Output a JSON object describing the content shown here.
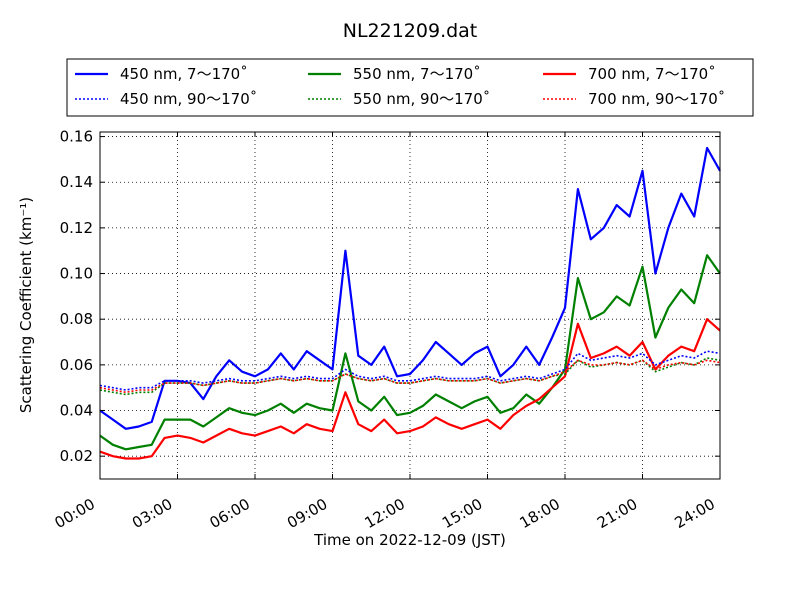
{
  "chart_data": {
    "type": "line",
    "title": "NL221209.dat",
    "xlabel": "Time on 2022-12-09 (JST)",
    "ylabel": "Scattering Coefficient (km⁻¹)",
    "xlim": [
      0,
      24
    ],
    "ylim": [
      0.01,
      0.162
    ],
    "x_ticks": [
      0,
      3,
      6,
      9,
      12,
      15,
      18,
      21,
      24
    ],
    "x_tick_labels": [
      "00:00",
      "03:00",
      "06:00",
      "09:00",
      "12:00",
      "15:00",
      "18:00",
      "21:00",
      "24:00"
    ],
    "y_ticks": [
      0.02,
      0.04,
      0.06,
      0.08,
      0.1,
      0.12,
      0.14,
      0.16
    ],
    "y_tick_labels": [
      "0.02",
      "0.04",
      "0.06",
      "0.08",
      "0.10",
      "0.12",
      "0.14",
      "0.16"
    ],
    "grid": true,
    "legend_position": "top, above plot, 3 columns",
    "x": [
      0,
      0.5,
      1,
      1.5,
      2,
      2.5,
      3,
      3.5,
      4,
      4.5,
      5,
      5.5,
      6,
      6.5,
      7,
      7.5,
      8,
      8.5,
      9,
      9.5,
      10,
      10.5,
      11,
      11.5,
      12,
      12.5,
      13,
      13.5,
      14,
      14.5,
      15,
      15.5,
      16,
      16.5,
      17,
      17.5,
      18,
      18.5,
      19,
      19.5,
      20,
      20.5,
      21,
      21.5,
      22,
      22.5,
      23,
      23.5,
      24
    ],
    "series": [
      {
        "name": "450 nm, 7～170˚",
        "color": "#0000ff",
        "style": "solid",
        "values": [
          0.04,
          0.036,
          0.032,
          0.033,
          0.035,
          0.053,
          0.053,
          0.052,
          0.045,
          0.055,
          0.062,
          0.057,
          0.055,
          0.058,
          0.065,
          0.058,
          0.066,
          0.062,
          0.058,
          0.11,
          0.064,
          0.06,
          0.068,
          0.055,
          0.056,
          0.062,
          0.07,
          0.065,
          0.06,
          0.065,
          0.068,
          0.055,
          0.06,
          0.068,
          0.06,
          0.072,
          0.085,
          0.137,
          0.115,
          0.12,
          0.13,
          0.125,
          0.145,
          0.1,
          0.12,
          0.135,
          0.125,
          0.155,
          0.145
        ]
      },
      {
        "name": "550 nm, 7～170˚",
        "color": "#008000",
        "style": "solid",
        "values": [
          0.029,
          0.025,
          0.023,
          0.024,
          0.025,
          0.036,
          0.036,
          0.036,
          0.033,
          0.037,
          0.041,
          0.039,
          0.038,
          0.04,
          0.043,
          0.039,
          0.043,
          0.041,
          0.04,
          0.065,
          0.044,
          0.04,
          0.046,
          0.038,
          0.039,
          0.042,
          0.047,
          0.044,
          0.041,
          0.044,
          0.046,
          0.039,
          0.041,
          0.047,
          0.043,
          0.05,
          0.058,
          0.098,
          0.08,
          0.083,
          0.09,
          0.086,
          0.103,
          0.072,
          0.085,
          0.093,
          0.087,
          0.108,
          0.1
        ]
      },
      {
        "name": "700 nm, 7～170˚",
        "color": "#ff0000",
        "style": "solid",
        "values": [
          0.022,
          0.02,
          0.019,
          0.019,
          0.02,
          0.028,
          0.029,
          0.028,
          0.026,
          0.029,
          0.032,
          0.03,
          0.029,
          0.031,
          0.033,
          0.03,
          0.034,
          0.032,
          0.031,
          0.048,
          0.034,
          0.031,
          0.036,
          0.03,
          0.031,
          0.033,
          0.037,
          0.034,
          0.032,
          0.034,
          0.036,
          0.032,
          0.038,
          0.042,
          0.045,
          0.05,
          0.055,
          0.078,
          0.063,
          0.065,
          0.068,
          0.064,
          0.07,
          0.058,
          0.064,
          0.068,
          0.066,
          0.08,
          0.075
        ]
      },
      {
        "name": "450 nm, 90～170˚",
        "color": "#0000ff",
        "style": "dotted",
        "values": [
          0.051,
          0.05,
          0.049,
          0.05,
          0.05,
          0.053,
          0.053,
          0.053,
          0.052,
          0.053,
          0.054,
          0.053,
          0.053,
          0.054,
          0.055,
          0.054,
          0.055,
          0.054,
          0.054,
          0.058,
          0.055,
          0.054,
          0.055,
          0.053,
          0.053,
          0.054,
          0.055,
          0.054,
          0.054,
          0.054,
          0.055,
          0.053,
          0.054,
          0.055,
          0.054,
          0.056,
          0.058,
          0.065,
          0.062,
          0.063,
          0.064,
          0.063,
          0.065,
          0.06,
          0.062,
          0.064,
          0.063,
          0.066,
          0.065
        ]
      },
      {
        "name": "550 nm, 90～170˚",
        "color": "#008000",
        "style": "dotted",
        "values": [
          0.049,
          0.048,
          0.047,
          0.048,
          0.048,
          0.052,
          0.052,
          0.052,
          0.051,
          0.052,
          0.053,
          0.052,
          0.052,
          0.053,
          0.054,
          0.053,
          0.054,
          0.053,
          0.053,
          0.056,
          0.054,
          0.053,
          0.054,
          0.052,
          0.052,
          0.053,
          0.054,
          0.053,
          0.053,
          0.053,
          0.054,
          0.052,
          0.053,
          0.054,
          0.053,
          0.055,
          0.056,
          0.062,
          0.059,
          0.06,
          0.061,
          0.06,
          0.062,
          0.057,
          0.059,
          0.061,
          0.06,
          0.063,
          0.062
        ]
      },
      {
        "name": "700 nm, 90～170˚",
        "color": "#ff0000",
        "style": "dotted",
        "values": [
          0.05,
          0.049,
          0.048,
          0.049,
          0.049,
          0.052,
          0.052,
          0.052,
          0.051,
          0.052,
          0.053,
          0.052,
          0.052,
          0.053,
          0.054,
          0.053,
          0.054,
          0.053,
          0.053,
          0.056,
          0.054,
          0.053,
          0.054,
          0.052,
          0.052,
          0.053,
          0.054,
          0.053,
          0.053,
          0.053,
          0.054,
          0.052,
          0.053,
          0.054,
          0.053,
          0.055,
          0.057,
          0.062,
          0.06,
          0.06,
          0.061,
          0.06,
          0.062,
          0.058,
          0.06,
          0.061,
          0.06,
          0.062,
          0.061
        ]
      }
    ]
  }
}
